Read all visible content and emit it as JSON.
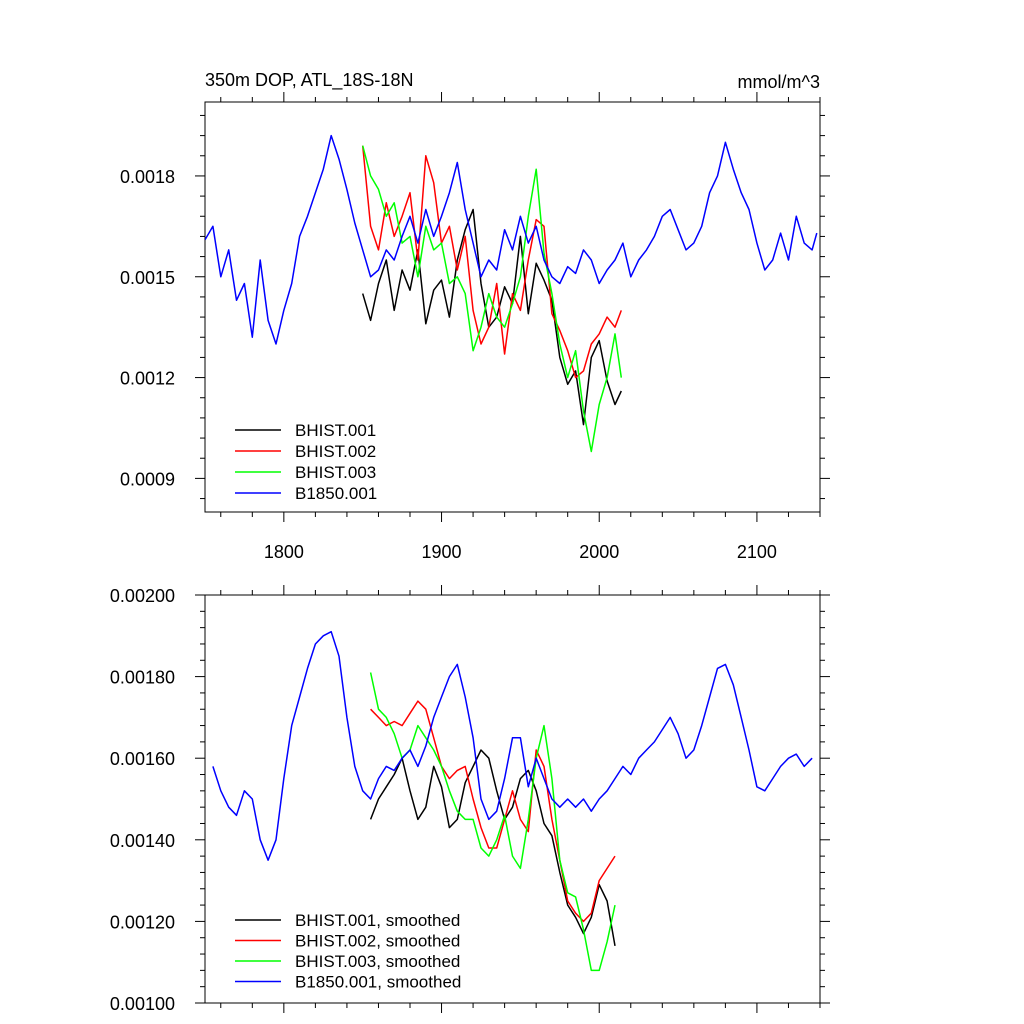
{
  "chart_data": [
    {
      "type": "line",
      "title": "350m DOP, ATL_18S-18N",
      "units": "mmol/m^3",
      "xlim": [
        1750,
        2140
      ],
      "ylim": [
        0.0008,
        0.00202
      ],
      "xticks": [
        1800,
        1900,
        2000,
        2100
      ],
      "xtick_labels": [
        "1800",
        "1900",
        "2000",
        "2100"
      ],
      "yticks": [
        0.0009,
        0.0012,
        0.0015,
        0.0018
      ],
      "ytick_labels": [
        "0.0009",
        "0.0012",
        "0.0015",
        "0.0018"
      ],
      "grid": false,
      "legend_position": "bottom-left",
      "series": [
        {
          "name": "BHIST.001",
          "color": "#000000",
          "x": [
            1850,
            1855,
            1860,
            1865,
            1870,
            1875,
            1880,
            1885,
            1890,
            1895,
            1900,
            1905,
            1910,
            1915,
            1920,
            1925,
            1930,
            1935,
            1940,
            1945,
            1950,
            1955,
            1960,
            1965,
            1970,
            1975,
            1980,
            1985,
            1990,
            1995,
            2000,
            2005,
            2010,
            2014
          ],
          "y": [
            0.00145,
            0.00137,
            0.00148,
            0.00155,
            0.0014,
            0.00152,
            0.00146,
            0.00158,
            0.00136,
            0.00146,
            0.00149,
            0.00138,
            0.00155,
            0.00164,
            0.0017,
            0.00148,
            0.00135,
            0.00138,
            0.00147,
            0.00142,
            0.00162,
            0.00139,
            0.00154,
            0.00149,
            0.00143,
            0.00126,
            0.00118,
            0.00122,
            0.00106,
            0.00126,
            0.00131,
            0.00119,
            0.00112,
            0.00116
          ]
        },
        {
          "name": "BHIST.002",
          "color": "#ff0000",
          "x": [
            1850,
            1855,
            1860,
            1865,
            1870,
            1875,
            1880,
            1885,
            1890,
            1895,
            1900,
            1905,
            1910,
            1915,
            1920,
            1925,
            1930,
            1935,
            1940,
            1945,
            1950,
            1955,
            1960,
            1965,
            1970,
            1975,
            1980,
            1985,
            1990,
            1995,
            2000,
            2005,
            2010,
            2014
          ],
          "y": [
            0.00189,
            0.00165,
            0.00158,
            0.00172,
            0.00162,
            0.00168,
            0.00175,
            0.00155,
            0.00186,
            0.00178,
            0.0016,
            0.00165,
            0.00152,
            0.00162,
            0.0014,
            0.0013,
            0.00135,
            0.00148,
            0.00127,
            0.00145,
            0.0014,
            0.00155,
            0.00167,
            0.00165,
            0.00139,
            0.00134,
            0.00128,
            0.0012,
            0.00122,
            0.0013,
            0.00133,
            0.00138,
            0.00135,
            0.0014
          ]
        },
        {
          "name": "BHIST.003",
          "color": "#00ff00",
          "x": [
            1850,
            1855,
            1860,
            1865,
            1870,
            1875,
            1880,
            1885,
            1890,
            1895,
            1900,
            1905,
            1910,
            1915,
            1920,
            1925,
            1930,
            1935,
            1940,
            1945,
            1950,
            1955,
            1960,
            1965,
            1970,
            1975,
            1980,
            1985,
            1990,
            1995,
            2000,
            2005,
            2010,
            2014
          ],
          "y": [
            0.00189,
            0.0018,
            0.00176,
            0.00168,
            0.00172,
            0.0016,
            0.00162,
            0.0015,
            0.00165,
            0.00158,
            0.0016,
            0.00148,
            0.0015,
            0.00145,
            0.00128,
            0.00135,
            0.00145,
            0.00138,
            0.00135,
            0.00142,
            0.0015,
            0.00168,
            0.00182,
            0.00157,
            0.00145,
            0.0013,
            0.0012,
            0.00128,
            0.0011,
            0.00098,
            0.00112,
            0.0012,
            0.00133,
            0.0012
          ]
        },
        {
          "name": "B1850.001",
          "color": "#0000ff",
          "x": [
            1750,
            1755,
            1760,
            1765,
            1770,
            1775,
            1780,
            1785,
            1790,
            1795,
            1800,
            1805,
            1810,
            1815,
            1820,
            1825,
            1830,
            1835,
            1840,
            1845,
            1850,
            1855,
            1860,
            1865,
            1870,
            1875,
            1880,
            1885,
            1890,
            1895,
            1900,
            1905,
            1910,
            1915,
            1920,
            1925,
            1930,
            1935,
            1940,
            1945,
            1950,
            1955,
            1960,
            1965,
            1970,
            1975,
            1980,
            1985,
            1990,
            1995,
            2000,
            2005,
            2010,
            2015,
            2020,
            2025,
            2030,
            2035,
            2040,
            2045,
            2050,
            2055,
            2060,
            2065,
            2070,
            2075,
            2080,
            2085,
            2090,
            2095,
            2100,
            2105,
            2110,
            2115,
            2120,
            2125,
            2130,
            2135,
            2138
          ],
          "y": [
            0.00161,
            0.00165,
            0.0015,
            0.00158,
            0.00143,
            0.00148,
            0.00132,
            0.00155,
            0.00137,
            0.0013,
            0.0014,
            0.00148,
            0.00162,
            0.00168,
            0.00175,
            0.00182,
            0.00192,
            0.00185,
            0.00176,
            0.00166,
            0.00158,
            0.0015,
            0.00152,
            0.00158,
            0.00155,
            0.00162,
            0.00168,
            0.0016,
            0.0017,
            0.00162,
            0.00168,
            0.00175,
            0.00184,
            0.0017,
            0.0016,
            0.0015,
            0.00155,
            0.00152,
            0.00164,
            0.00158,
            0.00168,
            0.0016,
            0.00165,
            0.00155,
            0.0015,
            0.00148,
            0.00153,
            0.00151,
            0.00158,
            0.00155,
            0.00148,
            0.00152,
            0.00155,
            0.0016,
            0.0015,
            0.00155,
            0.00158,
            0.00162,
            0.00168,
            0.0017,
            0.00164,
            0.00158,
            0.0016,
            0.00165,
            0.00175,
            0.0018,
            0.0019,
            0.00182,
            0.00175,
            0.0017,
            0.0016,
            0.00152,
            0.00155,
            0.00163,
            0.00155,
            0.00168,
            0.0016,
            0.00158,
            0.00163
          ]
        }
      ]
    },
    {
      "type": "line",
      "xlim": [
        1750,
        2140
      ],
      "ylim": [
        0.001,
        0.002
      ],
      "xticks": [
        1800,
        1900,
        2000,
        2100
      ],
      "yticks": [
        0.001,
        0.0012,
        0.0014,
        0.0016,
        0.0018,
        0.002
      ],
      "ytick_labels": [
        "0.00100",
        "0.00120",
        "0.00140",
        "0.00160",
        "0.00180",
        "0.00200"
      ],
      "grid": false,
      "legend_position": "bottom-left",
      "series": [
        {
          "name": "BHIST.001, smoothed",
          "color": "#000000",
          "x": [
            1855,
            1860,
            1865,
            1870,
            1875,
            1880,
            1885,
            1890,
            1895,
            1900,
            1905,
            1910,
            1915,
            1920,
            1925,
            1930,
            1935,
            1940,
            1945,
            1950,
            1955,
            1960,
            1965,
            1970,
            1975,
            1980,
            1985,
            1990,
            1995,
            2000,
            2005,
            2010
          ],
          "y": [
            0.00145,
            0.0015,
            0.00153,
            0.00156,
            0.0016,
            0.00152,
            0.00145,
            0.00148,
            0.00158,
            0.00153,
            0.00143,
            0.00145,
            0.00154,
            0.00158,
            0.00162,
            0.0016,
            0.00152,
            0.00145,
            0.00148,
            0.00155,
            0.00157,
            0.00152,
            0.00144,
            0.00141,
            0.00132,
            0.00124,
            0.00121,
            0.00117,
            0.00121,
            0.00129,
            0.00125,
            0.00114
          ]
        },
        {
          "name": "BHIST.002, smoothed",
          "color": "#ff0000",
          "x": [
            1855,
            1860,
            1865,
            1870,
            1875,
            1880,
            1885,
            1890,
            1895,
            1900,
            1905,
            1910,
            1915,
            1920,
            1925,
            1930,
            1935,
            1940,
            1945,
            1950,
            1955,
            1960,
            1965,
            1970,
            1975,
            1980,
            1985,
            1990,
            1995,
            2000,
            2005,
            2010
          ],
          "y": [
            0.00172,
            0.0017,
            0.00168,
            0.00169,
            0.00168,
            0.00171,
            0.00174,
            0.00172,
            0.00165,
            0.00158,
            0.00155,
            0.00157,
            0.00158,
            0.0015,
            0.00143,
            0.00138,
            0.00138,
            0.00145,
            0.00152,
            0.00145,
            0.00142,
            0.00162,
            0.00158,
            0.00145,
            0.00135,
            0.00125,
            0.00122,
            0.0012,
            0.00122,
            0.0013,
            0.00133,
            0.00136
          ]
        },
        {
          "name": "BHIST.003, smoothed",
          "color": "#00ff00",
          "x": [
            1855,
            1860,
            1865,
            1870,
            1875,
            1880,
            1885,
            1890,
            1895,
            1900,
            1905,
            1910,
            1915,
            1920,
            1925,
            1930,
            1935,
            1940,
            1945,
            1950,
            1955,
            1960,
            1965,
            1970,
            1975,
            1980,
            1985,
            1990,
            1995,
            2000,
            2005,
            2010
          ],
          "y": [
            0.00181,
            0.00172,
            0.0017,
            0.00166,
            0.0016,
            0.00162,
            0.00168,
            0.00165,
            0.00162,
            0.00158,
            0.00152,
            0.00147,
            0.00145,
            0.00145,
            0.00138,
            0.00136,
            0.0014,
            0.00146,
            0.00136,
            0.00133,
            0.00145,
            0.0016,
            0.00168,
            0.00155,
            0.00135,
            0.00127,
            0.00126,
            0.00118,
            0.00108,
            0.00108,
            0.00115,
            0.00124
          ]
        },
        {
          "name": "B1850.001, smoothed",
          "color": "#0000ff",
          "x": [
            1755,
            1760,
            1765,
            1770,
            1775,
            1780,
            1785,
            1790,
            1795,
            1800,
            1805,
            1810,
            1815,
            1820,
            1825,
            1830,
            1835,
            1840,
            1845,
            1850,
            1855,
            1860,
            1865,
            1870,
            1875,
            1880,
            1885,
            1890,
            1895,
            1900,
            1905,
            1910,
            1915,
            1920,
            1925,
            1930,
            1935,
            1940,
            1945,
            1950,
            1955,
            1960,
            1965,
            1970,
            1975,
            1980,
            1985,
            1990,
            1995,
            2000,
            2005,
            2010,
            2015,
            2020,
            2025,
            2030,
            2035,
            2040,
            2045,
            2050,
            2055,
            2060,
            2065,
            2070,
            2075,
            2080,
            2085,
            2090,
            2095,
            2100,
            2105,
            2110,
            2115,
            2120,
            2125,
            2130,
            2135
          ],
          "y": [
            0.00158,
            0.00152,
            0.00148,
            0.00146,
            0.00152,
            0.0015,
            0.0014,
            0.00135,
            0.0014,
            0.00155,
            0.00168,
            0.00175,
            0.00182,
            0.00188,
            0.0019,
            0.00191,
            0.00185,
            0.0017,
            0.00158,
            0.00152,
            0.0015,
            0.00155,
            0.00158,
            0.00157,
            0.0016,
            0.00162,
            0.00158,
            0.00163,
            0.0017,
            0.00175,
            0.0018,
            0.00183,
            0.00175,
            0.00165,
            0.0015,
            0.00145,
            0.00147,
            0.00155,
            0.00165,
            0.00165,
            0.00153,
            0.0016,
            0.00155,
            0.0015,
            0.00148,
            0.0015,
            0.00148,
            0.0015,
            0.00147,
            0.0015,
            0.00152,
            0.00155,
            0.00158,
            0.00156,
            0.0016,
            0.00162,
            0.00164,
            0.00167,
            0.0017,
            0.00166,
            0.0016,
            0.00162,
            0.00168,
            0.00175,
            0.00182,
            0.00183,
            0.00178,
            0.0017,
            0.00162,
            0.00153,
            0.00152,
            0.00155,
            0.00158,
            0.0016,
            0.00161,
            0.00158,
            0.0016
          ]
        }
      ]
    }
  ]
}
